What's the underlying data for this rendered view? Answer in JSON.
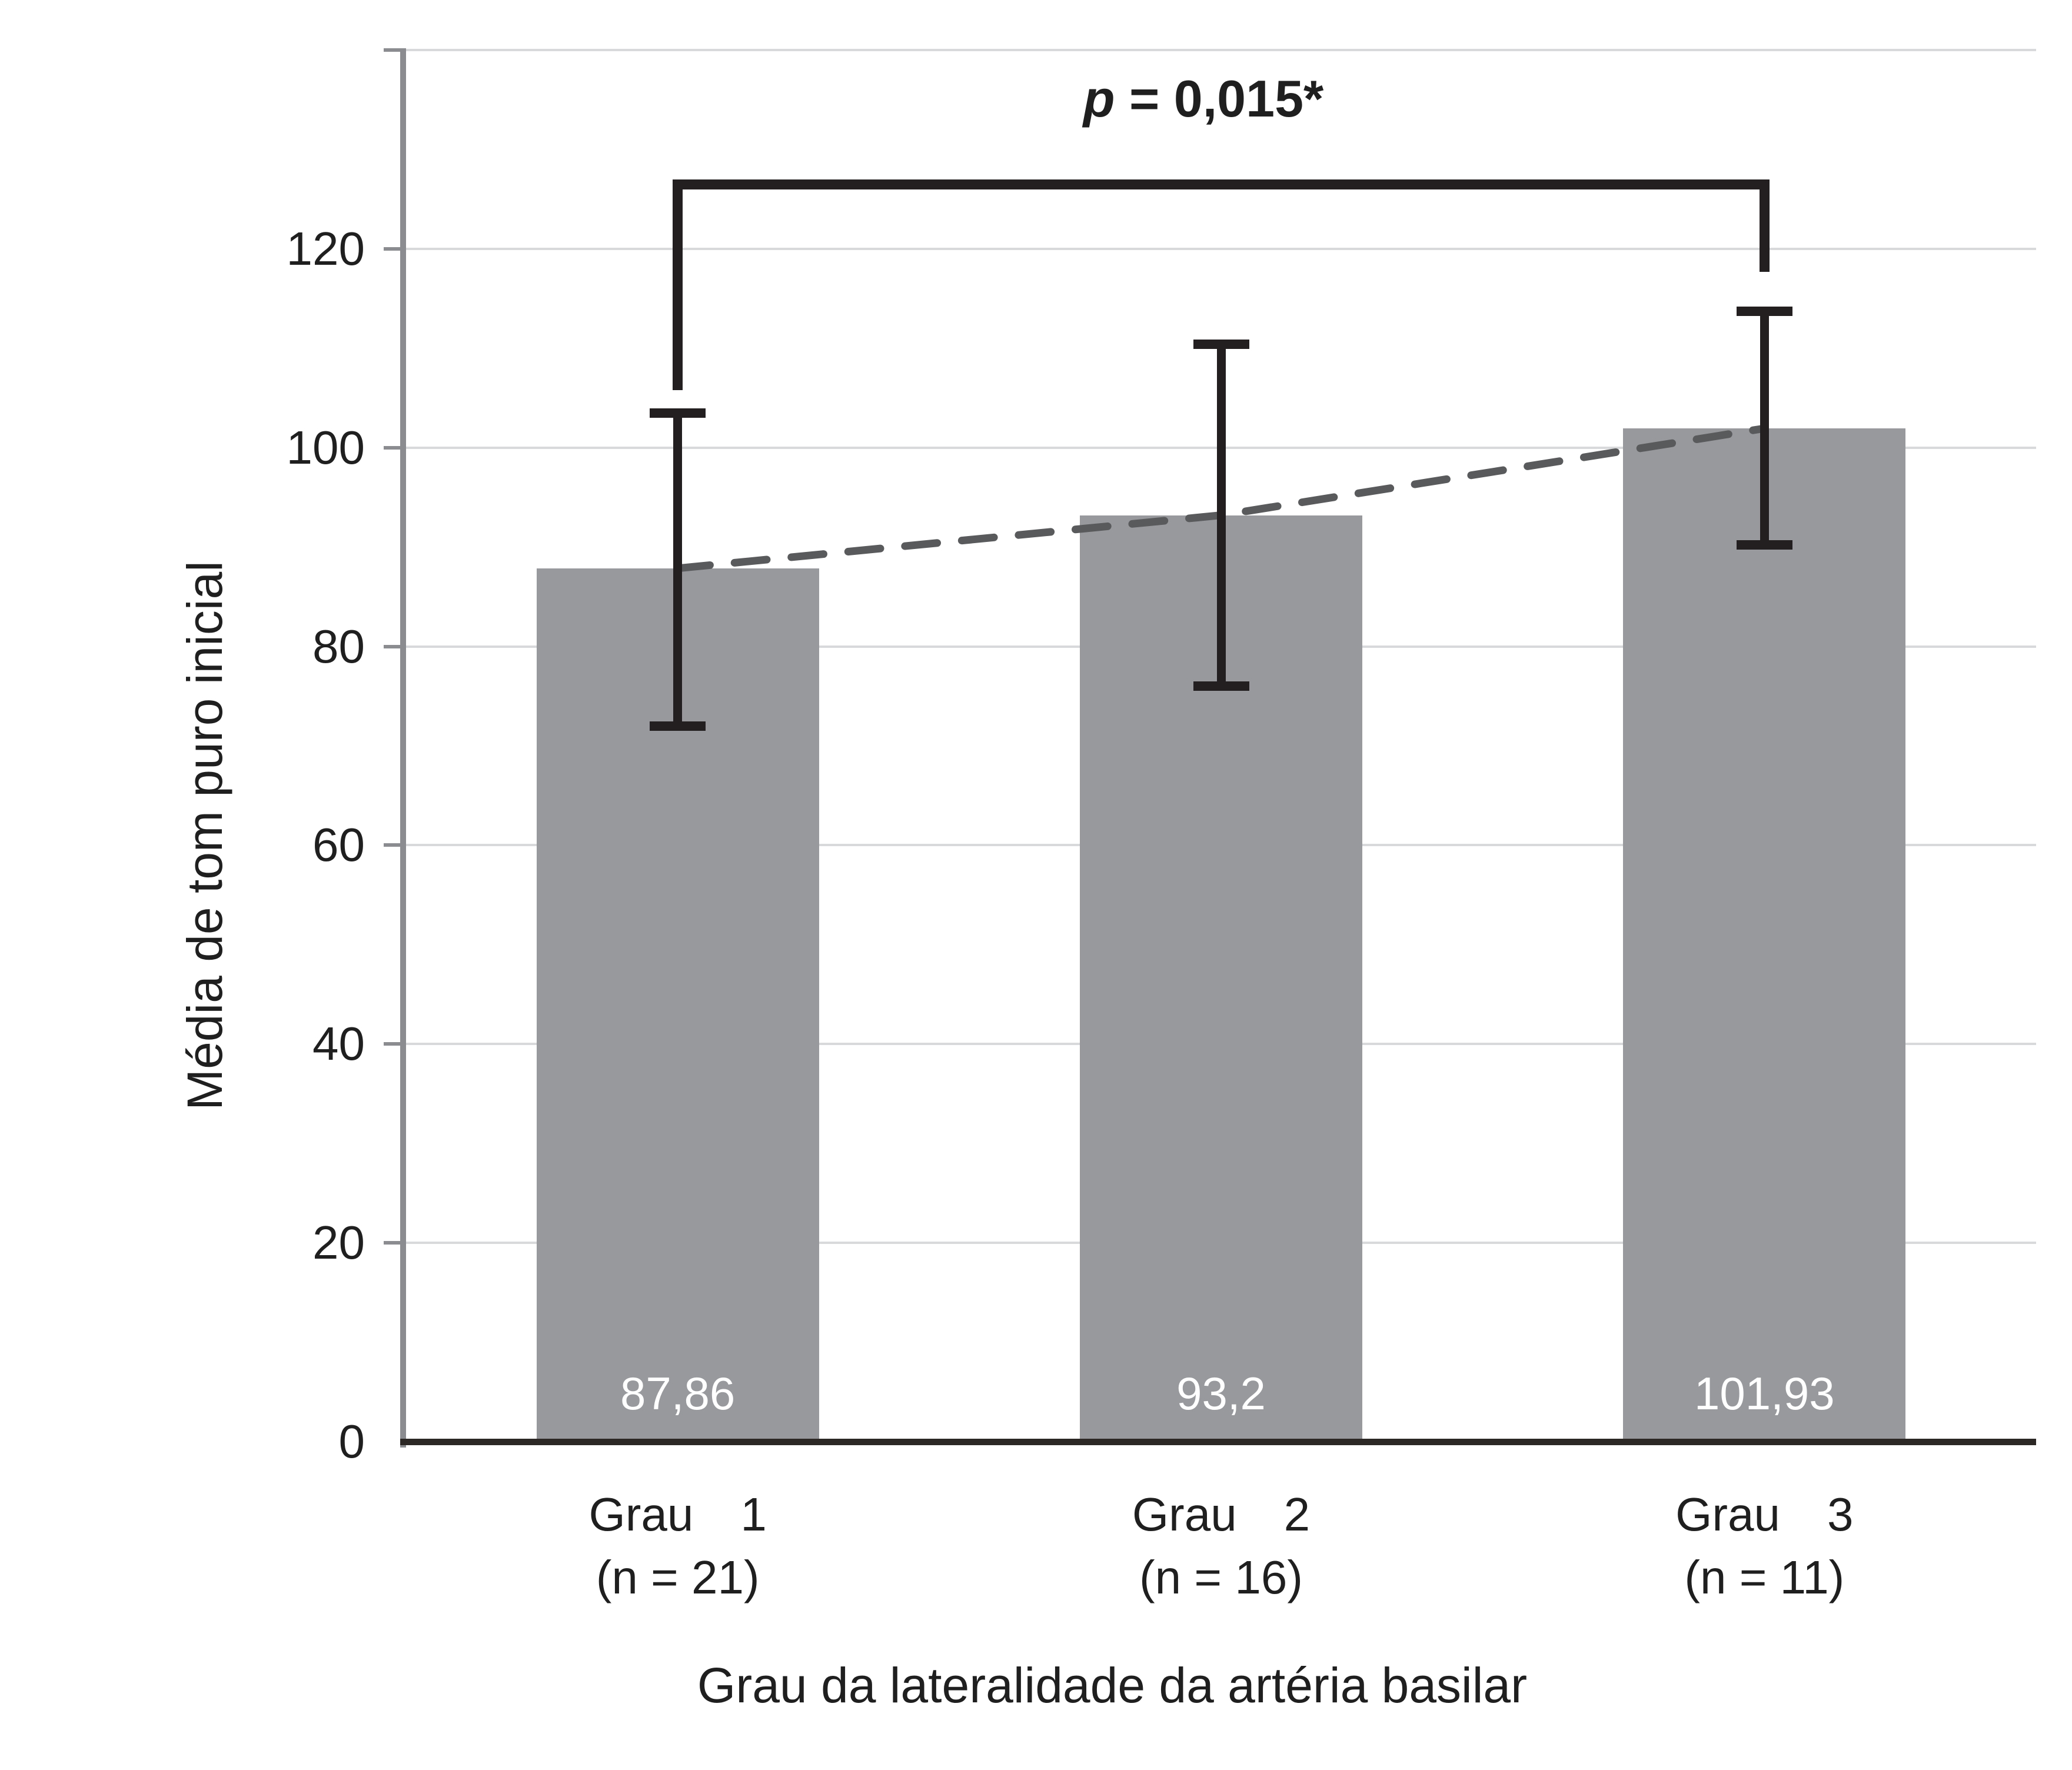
{
  "chart_data": {
    "type": "bar",
    "title": "",
    "categories": [
      "Grau 1",
      "Grau 2",
      "Grau 3"
    ],
    "category_sublabels": [
      "(n = 21)",
      "(n = 16)",
      "(n = 11)"
    ],
    "values": [
      87.86,
      93.2,
      101.93
    ],
    "value_labels": [
      "87,86",
      "93,2",
      "101,93"
    ],
    "error_low": [
      72,
      76,
      90.2
    ],
    "error_high": [
      103.5,
      110.4,
      113.7
    ],
    "trend_line": {
      "style": "dashed",
      "connects": "bar tops"
    },
    "significance": {
      "p": "p",
      "rest": " = 0,015*",
      "label": "p = 0,015*",
      "from": 0,
      "to": 2,
      "bar_y": 126.5,
      "left_drop_to": 105.8,
      "right_drop_to": 117.7
    },
    "xlabel": "Grau da lateralidade da artéria basilar",
    "ylabel": "Média de tom puro inicial",
    "yticks": [
      0,
      20,
      40,
      60,
      80,
      100,
      120
    ],
    "ylim": [
      0,
      140
    ],
    "grid": true,
    "legend": false
  },
  "colors": {
    "bar": "#97999C",
    "error_bar": "#231F20",
    "bracket": "#231F20",
    "trend": "#595A5C",
    "gridline": "#D8D9DA",
    "axis_y": "#8A8C8F",
    "axis_x": "#2B2826",
    "value_label": "#FFFFFF",
    "text": "#1F1F1F"
  }
}
